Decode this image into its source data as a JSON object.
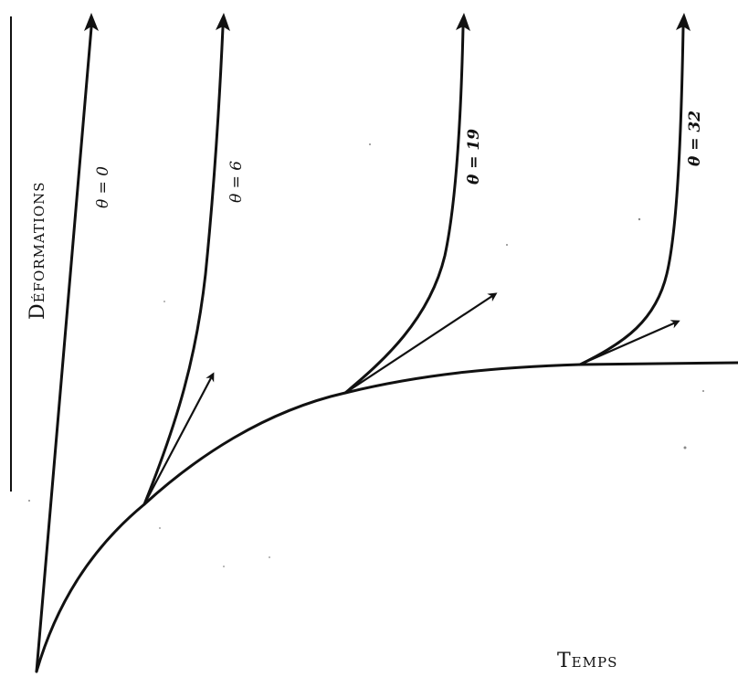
{
  "labels": {
    "y_axis": "Déformations",
    "x_axis": "Temps"
  },
  "curves": [
    {
      "theta_label": "θ = 0"
    },
    {
      "theta_label": "θ = 6"
    },
    {
      "theta_label": "θ = 19"
    },
    {
      "theta_label": "θ = 32"
    }
  ]
}
